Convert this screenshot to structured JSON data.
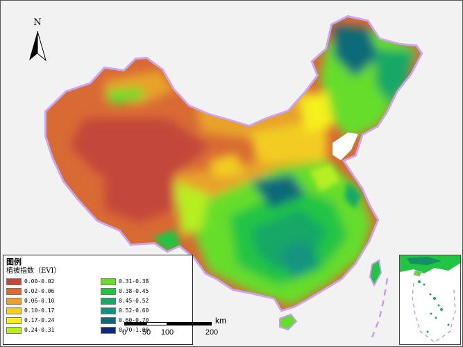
{
  "north": {
    "label": "N"
  },
  "legend": {
    "title": "图例",
    "subtitle": "植被指数（EVI）",
    "items": [
      {
        "label": "0.00-0.02",
        "color": "#c4473a"
      },
      {
        "label": "0.31-0.38",
        "color": "#66dd2c"
      },
      {
        "label": "0.02-0.06",
        "color": "#d86a34"
      },
      {
        "label": "0.38-0.45",
        "color": "#22c444"
      },
      {
        "label": "0.06-0.10",
        "color": "#e8a22b"
      },
      {
        "label": "0.45-0.52",
        "color": "#18a866"
      },
      {
        "label": "0.10-0.17",
        "color": "#f2cc20"
      },
      {
        "label": "0.52-0.60",
        "color": "#129381"
      },
      {
        "label": "0.17-0.24",
        "color": "#f6f01e"
      },
      {
        "label": "0.60-0.70",
        "color": "#0d6a78"
      },
      {
        "label": "0.24-0.31",
        "color": "#b6ee22"
      },
      {
        "label": "0.70-1.00",
        "color": "#0b2b7a"
      }
    ]
  },
  "scale_bar": {
    "unit": "km",
    "ticks": [
      "0",
      "50",
      "100",
      "200"
    ]
  },
  "colors": {
    "border_glow": "#c99bf0",
    "background": "#f2f2f2",
    "sea": "#ffffff"
  }
}
